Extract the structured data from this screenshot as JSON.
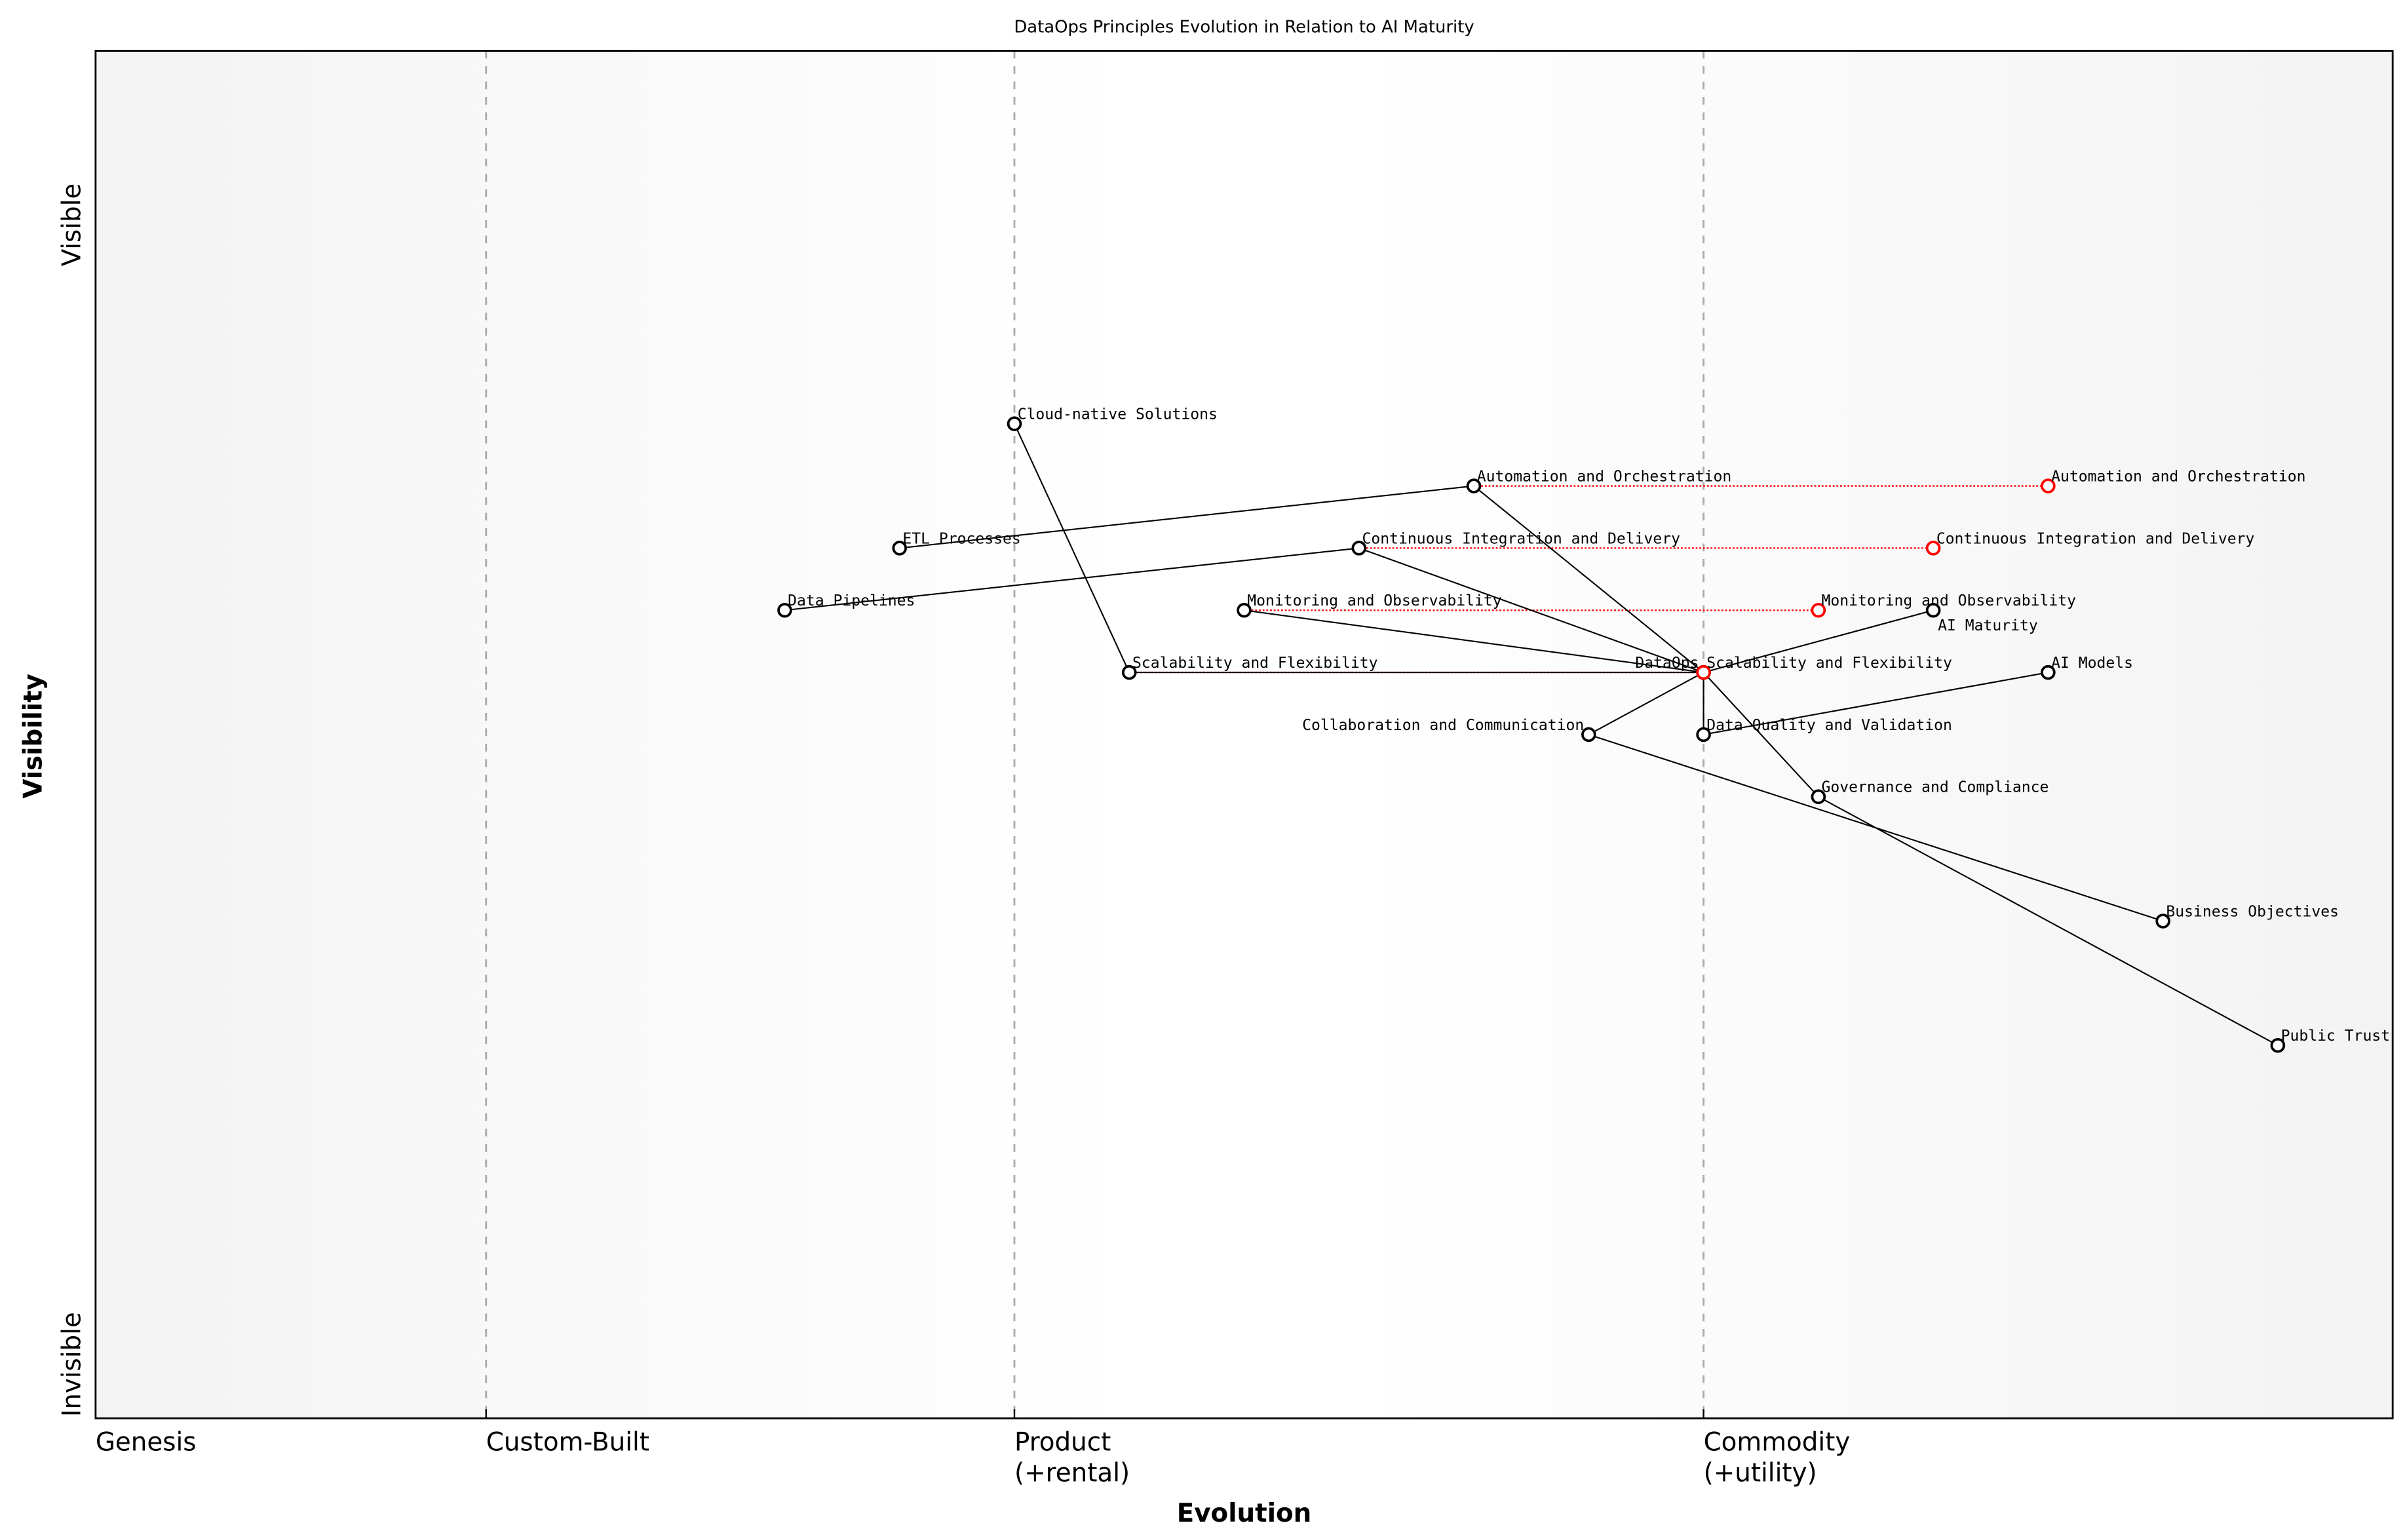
{
  "chart_data": {
    "type": "scatter",
    "subtype": "wardley-map",
    "title": "DataOps Principles Evolution in Relation to AI Maturity",
    "xlabel": "Evolution",
    "ylabel": "Visibility",
    "xlim": [
      0,
      1
    ],
    "ylim": [
      -0.05,
      1.05
    ],
    "grid": false,
    "y_side_labels": {
      "top": "Visible",
      "bottom": "Invisible"
    },
    "x_ticks": [
      {
        "value": 0.0,
        "label": [
          "Genesis"
        ]
      },
      {
        "value": 0.17,
        "label": [
          "Custom-Built"
        ]
      },
      {
        "value": 0.4,
        "label": [
          "Product",
          "(+rental)"
        ]
      },
      {
        "value": 0.7,
        "label": [
          "Commodity",
          "(+utility)"
        ]
      }
    ],
    "stage_lines": [
      0.17,
      0.4,
      0.7
    ],
    "colors": {
      "component": "#000000",
      "evolved": "#ff0000",
      "stage_line": "#aaaaaa",
      "background_edge": "#f3f3f3",
      "background_center": "#ffffff"
    },
    "components": [
      {
        "name": "Cloud-native Solutions",
        "x": 0.4,
        "y": 0.75
      },
      {
        "name": "Automation and Orchestration",
        "x": 0.6,
        "y": 0.7
      },
      {
        "name": "ETL Processes",
        "x": 0.35,
        "y": 0.65
      },
      {
        "name": "Continuous Integration and Delivery",
        "x": 0.55,
        "y": 0.65
      },
      {
        "name": "Data Pipelines",
        "x": 0.3,
        "y": 0.6
      },
      {
        "name": "Monitoring and Observability",
        "x": 0.5,
        "y": 0.6
      },
      {
        "name": "AI Maturity",
        "x": 0.8,
        "y": 0.6
      },
      {
        "name": "Scalability and Flexibility",
        "x": 0.45,
        "y": 0.55
      },
      {
        "name": "DataOps",
        "x": 0.7,
        "y": 0.55
      },
      {
        "name": "AI Models",
        "x": 0.85,
        "y": 0.55
      },
      {
        "name": "Collaboration and Communication",
        "x": 0.65,
        "y": 0.5
      },
      {
        "name": "Data Quality and Validation",
        "x": 0.7,
        "y": 0.5
      },
      {
        "name": "Governance and Compliance",
        "x": 0.75,
        "y": 0.45
      },
      {
        "name": "Business Objectives",
        "x": 0.9,
        "y": 0.35
      },
      {
        "name": "Public Trust",
        "x": 0.95,
        "y": 0.25
      }
    ],
    "links": [
      [
        "Cloud-native Solutions",
        "Scalability and Flexibility"
      ],
      [
        "ETL Processes",
        "Automation and Orchestration"
      ],
      [
        "Data Pipelines",
        "Continuous Integration and Delivery"
      ],
      [
        "Automation and Orchestration",
        "DataOps"
      ],
      [
        "Continuous Integration and Delivery",
        "DataOps"
      ],
      [
        "Monitoring and Observability",
        "DataOps"
      ],
      [
        "Scalability and Flexibility",
        "DataOps"
      ],
      [
        "DataOps",
        "AI Maturity"
      ],
      [
        "DataOps",
        "Collaboration and Communication"
      ],
      [
        "DataOps",
        "Data Quality and Validation"
      ],
      [
        "DataOps",
        "Governance and Compliance"
      ],
      [
        "Data Quality and Validation",
        "AI Models"
      ],
      [
        "Collaboration and Communication",
        "Business Objectives"
      ],
      [
        "Governance and Compliance",
        "Public Trust"
      ]
    ],
    "evolutions": [
      {
        "name": "Automation and Orchestration",
        "from_x": 0.6,
        "to_x": 0.85,
        "y": 0.7
      },
      {
        "name": "Continuous Integration and Delivery",
        "from_x": 0.55,
        "to_x": 0.8,
        "y": 0.65
      },
      {
        "name": "Monitoring and Observability",
        "from_x": 0.5,
        "to_x": 0.75,
        "y": 0.6
      },
      {
        "name": "Scalability and Flexibility",
        "from_x": 0.45,
        "to_x": 0.7,
        "y": 0.55
      }
    ]
  }
}
